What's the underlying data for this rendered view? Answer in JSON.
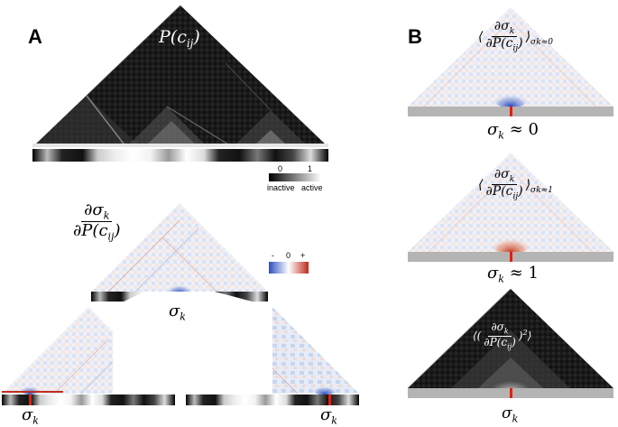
{
  "panels": {
    "a": {
      "letter": "A"
    },
    "b": {
      "letter": "B"
    }
  },
  "labels": {
    "top_map": "P(c",
    "top_map_sub": "ij",
    "deriv_num": "∂σ",
    "deriv_num_sub": "k",
    "deriv_den": "∂P(c",
    "deriv_den_sub": "ij",
    "sigma": "σ",
    "sigma_sub": "k",
    "approx0": "≈ 0",
    "approx1": "≈ 1",
    "cond0": "σ",
    "cond0_tail": "≈0",
    "cond1_tail": "≈1"
  },
  "colorbar_gray": {
    "min_label": "0",
    "max_label": "1",
    "left_word": "inactive",
    "right_word": "active"
  },
  "colorbar_div": {
    "neg": "-",
    "zero": "0",
    "pos": "+"
  },
  "colors": {
    "negative": "#3b5fc0",
    "positive": "#d03020",
    "marker": "#e02010",
    "strip": "#b4b4b4"
  }
}
